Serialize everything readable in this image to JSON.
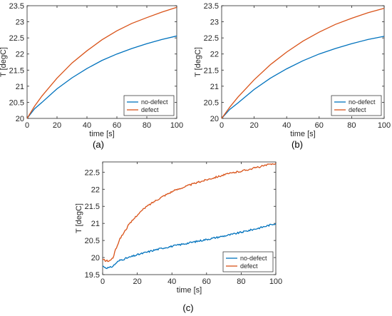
{
  "chart_data": [
    {
      "type": "line",
      "caption": "(a)",
      "xlabel": "time [s]",
      "ylabel": "T [degC]",
      "xlim": [
        0,
        100
      ],
      "ylim": [
        20,
        23.5
      ],
      "xticks": [
        0,
        20,
        40,
        60,
        80,
        100
      ],
      "yticks": [
        20,
        20.5,
        21,
        21.5,
        22,
        22.5,
        23,
        23.5
      ],
      "ytick_labels": [
        "20",
        "20.5",
        "21",
        "21.5",
        "22",
        "22.5",
        "23",
        "23.5"
      ],
      "grid": false,
      "legend_position": "bottom-right",
      "x": [
        0,
        5,
        10,
        20,
        30,
        40,
        50,
        60,
        70,
        80,
        90,
        100
      ],
      "series": [
        {
          "name": "no-defect",
          "color": "#0072BD",
          "values": [
            20.0,
            20.3,
            20.5,
            20.92,
            21.26,
            21.55,
            21.8,
            22.0,
            22.17,
            22.32,
            22.45,
            22.56
          ]
        },
        {
          "name": "defect",
          "color": "#D95319",
          "values": [
            20.0,
            20.38,
            20.7,
            21.25,
            21.72,
            22.1,
            22.44,
            22.72,
            22.95,
            23.13,
            23.3,
            23.45
          ]
        }
      ]
    },
    {
      "type": "line",
      "caption": "(b)",
      "xlabel": "time [s]",
      "ylabel": "T [degC]",
      "xlim": [
        0,
        100
      ],
      "ylim": [
        20,
        23.5
      ],
      "xticks": [
        0,
        20,
        40,
        60,
        80,
        100
      ],
      "yticks": [
        20,
        20.5,
        21,
        21.5,
        22,
        22.5,
        23,
        23.5
      ],
      "ytick_labels": [
        "20",
        "20.5",
        "21",
        "21.5",
        "22",
        "22.5",
        "23",
        "23.5"
      ],
      "grid": false,
      "legend_position": "bottom-right",
      "x": [
        0,
        5,
        10,
        20,
        30,
        40,
        50,
        60,
        70,
        80,
        90,
        100
      ],
      "series": [
        {
          "name": "no-defect",
          "color": "#0072BD",
          "values": [
            20.0,
            20.28,
            20.48,
            20.9,
            21.25,
            21.54,
            21.79,
            22.0,
            22.17,
            22.32,
            22.45,
            22.55
          ]
        },
        {
          "name": "defect",
          "color": "#D95319",
          "values": [
            20.0,
            20.35,
            20.66,
            21.2,
            21.67,
            22.06,
            22.4,
            22.68,
            22.92,
            23.11,
            23.28,
            23.42
          ]
        }
      ]
    },
    {
      "type": "line",
      "caption": "(c)",
      "xlabel": "time [s]",
      "ylabel": "T [degC]",
      "xlim": [
        0,
        100
      ],
      "ylim": [
        19.5,
        22.8
      ],
      "xticks": [
        0,
        20,
        40,
        60,
        80,
        100
      ],
      "yticks": [
        19.5,
        20,
        20.5,
        21,
        21.5,
        22,
        22.5
      ],
      "ytick_labels": [
        "19.5",
        "20",
        "20.5",
        "21",
        "21.5",
        "22",
        "22.5"
      ],
      "grid": false,
      "legend_position": "bottom-right",
      "noisy": true,
      "x": [
        0,
        2,
        4,
        6,
        8,
        10,
        15,
        20,
        25,
        30,
        35,
        40,
        45,
        50,
        55,
        60,
        65,
        70,
        75,
        80,
        85,
        90,
        95,
        100
      ],
      "series": [
        {
          "name": "no-defect",
          "color": "#0072BD",
          "values": [
            19.75,
            19.7,
            19.7,
            19.75,
            19.85,
            19.92,
            20.0,
            20.08,
            20.15,
            20.22,
            20.28,
            20.33,
            20.38,
            20.43,
            20.48,
            20.53,
            20.58,
            20.63,
            20.68,
            20.74,
            20.8,
            20.86,
            20.93,
            21.0
          ]
        },
        {
          "name": "defect",
          "color": "#D95319",
          "values": [
            19.95,
            19.9,
            19.9,
            20.0,
            20.3,
            20.55,
            20.95,
            21.25,
            21.48,
            21.65,
            21.8,
            21.93,
            22.03,
            22.12,
            22.2,
            22.28,
            22.35,
            22.42,
            22.48,
            22.53,
            22.59,
            22.65,
            22.71,
            22.76
          ]
        }
      ]
    }
  ]
}
